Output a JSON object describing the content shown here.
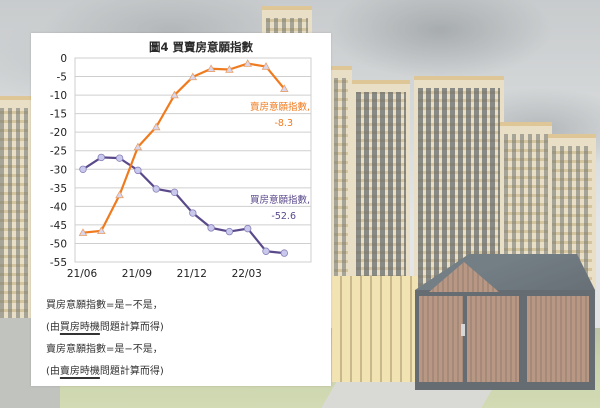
{
  "chart_data": {
    "type": "line",
    "title": "圖4  買賣房意願指數",
    "xlabel": "",
    "ylabel": "",
    "x": [
      "21/06",
      "21/07",
      "21/08",
      "21/09",
      "21/10",
      "21/11",
      "21/12",
      "22/01",
      "22/02",
      "22/03",
      "22/04",
      "22/05"
    ],
    "x_tick_labels": [
      "21/06",
      "21/09",
      "21/12",
      "22/03"
    ],
    "ylim": [
      -55,
      0
    ],
    "y_ticks": [
      0,
      -5,
      -10,
      -15,
      -20,
      -25,
      -30,
      -35,
      -40,
      -45,
      -50,
      -55
    ],
    "grid": true,
    "series": [
      {
        "name": "買房意願指數",
        "color": "#5b4a8b",
        "marker": "circle",
        "values": [
          -30.0,
          -26.8,
          -27.0,
          -30.3,
          -35.3,
          -36.2,
          -41.8,
          -45.8,
          -46.8,
          -46.0,
          -52.1,
          -52.6
        ],
        "annotation": {
          "label": "買房意願指數,",
          "value": "-52.6"
        }
      },
      {
        "name": "賣房意願指數",
        "color": "#f07b1e",
        "marker": "triangle",
        "values": [
          -47.1,
          -46.6,
          -36.9,
          -24.0,
          -18.6,
          -10.0,
          -5.1,
          -2.9,
          -3.1,
          -1.5,
          -2.3,
          -8.3
        ],
        "annotation": {
          "label": "賣房意願指數,",
          "value": "-8.3"
        }
      }
    ],
    "legend": "inline annotations"
  },
  "panel": {
    "title": "圖4  買賣房意願指數",
    "y_axis_labels": [
      "0",
      "-5",
      "-10",
      "-15",
      "-20",
      "-25",
      "-30",
      "-35",
      "-40",
      "-45",
      "-50",
      "-55"
    ],
    "x_axis_labels": [
      "21/06",
      "21/09",
      "21/12",
      "22/03"
    ],
    "sell_label": "賣房意願指數,",
    "sell_value": "-8.3",
    "buy_label": "買房意願指數,",
    "buy_value": "-52.6"
  },
  "notes": {
    "buy_formula": "買房意願指數=是−不是，",
    "buy_source_prefix": "(由",
    "buy_source_underlined": "買房時機",
    "buy_source_suffix": "問題計算而得)",
    "sell_formula": "賣房意願指數=是−不是，",
    "sell_source_prefix": "(由",
    "sell_source_underlined": "賣房時機",
    "sell_source_suffix": "問題計算而得)"
  },
  "colors": {
    "sell_line": "#f07b1e",
    "buy_line": "#5b4a8b",
    "marker_fill": "#c9c9ee",
    "grid": "#cfcfcf"
  }
}
